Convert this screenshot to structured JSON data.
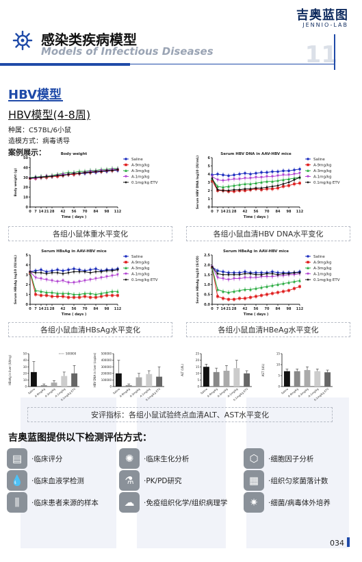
{
  "brand": {
    "cn": "吉奥蓝图",
    "en": "JENNIO-LAB"
  },
  "header": {
    "title_cn": "感染类疾病模型",
    "title_en": "Models of Infectious Diseases",
    "page_section_number": "11"
  },
  "section": {
    "title": "HBV模型",
    "subtitle": "HBV模型(4-8周)",
    "strain": "种属：C57BL/6小鼠",
    "method": "造模方式：病毒诱导",
    "examples_label": "案例展示："
  },
  "legend_labels": [
    "Saline",
    "A-9mg/kg",
    "A-3mg/kg",
    "A-1mg/kg",
    "0.1mg/kg ETV"
  ],
  "colors": {
    "saline": "#1f2fbf",
    "a9": "#e02020",
    "a3": "#22a83a",
    "a1": "#b040d0",
    "etv": "#111111",
    "accent": "#1f4aa8"
  },
  "chart_data": [
    {
      "type": "line",
      "title": "Body weight",
      "xlabel": "Time ( days )",
      "ylabel": "Body weight (g)",
      "x": [
        0,
        7,
        14,
        21,
        28,
        35,
        42,
        49,
        56,
        63,
        70,
        77,
        84,
        91,
        98,
        105,
        112
      ],
      "xticks": [
        "0",
        "7",
        "14",
        "21",
        "28",
        "42",
        "56",
        "70",
        "84",
        "98",
        "112"
      ],
      "ylim": [
        0,
        50
      ],
      "yticks": [
        "0",
        "10",
        "20",
        "30",
        "40",
        "50"
      ],
      "series": [
        {
          "name": "Saline",
          "values": [
            29,
            30,
            30,
            30,
            31,
            32,
            32,
            33,
            33,
            34,
            34,
            35,
            35,
            36,
            36,
            37,
            37
          ]
        },
        {
          "name": "A-9mg/kg",
          "values": [
            29,
            29,
            30,
            30,
            31,
            31,
            32,
            33,
            33,
            34,
            35,
            35,
            36,
            36,
            37,
            37,
            38
          ]
        },
        {
          "name": "A-3mg/kg",
          "values": [
            30,
            30,
            31,
            31,
            32,
            33,
            34,
            35,
            35,
            36,
            36,
            37,
            37,
            38,
            38,
            39,
            39
          ]
        },
        {
          "name": "A-1mg/kg",
          "values": [
            29,
            29,
            30,
            31,
            31,
            32,
            33,
            33,
            34,
            34,
            35,
            36,
            36,
            37,
            37,
            38,
            38
          ]
        },
        {
          "name": "0.1mg/kg ETV",
          "values": [
            29,
            30,
            30,
            31,
            31,
            32,
            32,
            33,
            34,
            34,
            35,
            35,
            36,
            36,
            37,
            37,
            38
          ]
        }
      ]
    },
    {
      "type": "line",
      "title": "Serum HBV DNA in AAV-HBV mice",
      "xlabel": "Time ( days )",
      "ylabel": "Serum HBV DNA log10 (IU/mL)",
      "x": [
        0,
        7,
        14,
        21,
        28,
        35,
        42,
        49,
        56,
        63,
        70,
        77,
        84,
        91,
        98,
        105,
        112
      ],
      "xticks": [
        "0",
        "7",
        "14",
        "21",
        "28",
        "42",
        "56",
        "70",
        "84",
        "98",
        "112"
      ],
      "ylim": [
        0,
        6
      ],
      "yticks": [
        "0",
        "1",
        "2",
        "3",
        "4",
        "5",
        "6"
      ],
      "series": [
        {
          "name": "Saline",
          "values": [
            3.9,
            4.0,
            3.9,
            3.8,
            3.9,
            4.0,
            4.1,
            4.0,
            4.1,
            4.2,
            4.2,
            4.3,
            4.3,
            4.4,
            4.4,
            4.5,
            4.6
          ]
        },
        {
          "name": "A-9mg/kg",
          "values": [
            3.2,
            2.0,
            2.0,
            1.9,
            1.9,
            2.0,
            2.0,
            2.1,
            2.2,
            2.1,
            2.2,
            2.2,
            2.3,
            2.5,
            2.6,
            2.8,
            2.9
          ]
        },
        {
          "name": "A-3mg/kg",
          "values": [
            3.4,
            2.5,
            2.4,
            2.5,
            2.6,
            2.7,
            2.8,
            2.8,
            2.9,
            3.0,
            3.1,
            3.1,
            3.2,
            3.3,
            3.4,
            3.5,
            3.6
          ]
        },
        {
          "name": "A-1mg/kg",
          "values": [
            3.7,
            3.3,
            3.2,
            3.3,
            3.4,
            3.4,
            3.5,
            3.5,
            3.6,
            3.6,
            3.7,
            3.7,
            3.8,
            3.9,
            3.9,
            4.0,
            4.1
          ]
        },
        {
          "name": "0.1mg/kg ETV",
          "values": [
            3.5,
            2.1,
            2.0,
            2.0,
            2.1,
            2.1,
            2.2,
            2.2,
            2.3,
            2.3,
            2.4,
            2.5,
            2.6,
            2.8,
            3.0,
            3.3,
            3.6
          ]
        }
      ]
    },
    {
      "type": "line",
      "title": "Serum HBsAg in AAV-HBV mice",
      "xlabel": "Time ( days )",
      "ylabel": "Serum HBsAg log10 (IU/mL)",
      "x": [
        0,
        7,
        14,
        21,
        28,
        35,
        42,
        49,
        56,
        63,
        70,
        77,
        84,
        91,
        98,
        105,
        112
      ],
      "xticks": [
        "0",
        "7",
        "14",
        "21",
        "28",
        "42",
        "56",
        "70",
        "84",
        "98",
        "112"
      ],
      "ylim": [
        0,
        5
      ],
      "yticks": [
        "0",
        "1",
        "2",
        "3",
        "4",
        "5"
      ],
      "series": [
        {
          "name": "Saline",
          "values": [
            3.3,
            3.4,
            3.5,
            3.3,
            3.4,
            3.5,
            3.4,
            3.5,
            3.6,
            3.5,
            3.4,
            3.5,
            3.6,
            3.4,
            3.5,
            3.5,
            3.6
          ]
        },
        {
          "name": "A-9mg/kg",
          "values": [
            3.2,
            1.0,
            0.9,
            0.9,
            0.8,
            0.8,
            0.8,
            0.7,
            0.7,
            0.7,
            0.8,
            0.7,
            0.7,
            0.8,
            0.9,
            0.9,
            0.9
          ]
        },
        {
          "name": "A-3mg/kg",
          "values": [
            3.3,
            1.4,
            1.3,
            1.2,
            1.2,
            1.1,
            1.1,
            1.1,
            1.0,
            1.0,
            1.1,
            1.1,
            1.0,
            1.1,
            1.2,
            1.3,
            1.3
          ]
        },
        {
          "name": "A-1mg/kg",
          "values": [
            3.3,
            2.7,
            2.6,
            2.5,
            2.4,
            2.3,
            2.4,
            2.2,
            2.2,
            2.3,
            2.4,
            2.5,
            2.6,
            2.7,
            2.8,
            2.9,
            3.0
          ]
        },
        {
          "name": "0.1mg/kg ETV",
          "values": [
            3.3,
            3.2,
            3.2,
            3.1,
            3.2,
            3.2,
            3.1,
            3.2,
            3.3,
            3.3,
            3.3,
            3.2,
            3.3,
            3.3,
            3.4,
            3.4,
            3.5
          ]
        }
      ]
    },
    {
      "type": "line",
      "title": "Serum HBeAg in AAV-HBV mice",
      "xlabel": "Time ( days )",
      "ylabel": "Serum HBeAg log10 (S/CO)",
      "x": [
        0,
        7,
        14,
        21,
        28,
        35,
        42,
        49,
        56,
        63,
        70,
        77,
        84,
        91,
        98,
        105,
        112
      ],
      "xticks": [
        "0",
        "7",
        "14",
        "21",
        "28",
        "42",
        "56",
        "70",
        "84",
        "98",
        "112"
      ],
      "ylim": [
        0,
        2.5
      ],
      "yticks": [
        "0.0",
        "0.5",
        "1.0",
        "1.5",
        "2.0",
        "2.5"
      ],
      "series": [
        {
          "name": "Saline",
          "values": [
            1.9,
            1.7,
            1.65,
            1.6,
            1.6,
            1.6,
            1.65,
            1.6,
            1.6,
            1.6,
            1.6,
            1.65,
            1.6,
            1.6,
            1.6,
            1.6,
            1.65
          ]
        },
        {
          "name": "A-9mg/kg",
          "values": [
            1.85,
            0.4,
            0.3,
            0.25,
            0.25,
            0.3,
            0.3,
            0.35,
            0.4,
            0.45,
            0.5,
            0.55,
            0.6,
            0.65,
            0.7,
            0.8,
            0.9
          ]
        },
        {
          "name": "A-3mg/kg",
          "values": [
            1.85,
            0.75,
            0.65,
            0.6,
            0.65,
            0.7,
            0.75,
            0.75,
            0.8,
            0.85,
            0.9,
            0.95,
            1.0,
            1.05,
            1.1,
            1.15,
            1.2
          ]
        },
        {
          "name": "A-1mg/kg",
          "values": [
            1.9,
            1.35,
            1.3,
            1.25,
            1.3,
            1.3,
            1.35,
            1.35,
            1.35,
            1.4,
            1.4,
            1.4,
            1.45,
            1.45,
            1.5,
            1.5,
            1.55
          ]
        },
        {
          "name": "0.1mg/kg ETV",
          "values": [
            1.9,
            1.55,
            1.5,
            1.5,
            1.5,
            1.5,
            1.55,
            1.55,
            1.5,
            1.5,
            1.55,
            1.55,
            1.5,
            1.55,
            1.55,
            1.6,
            1.6
          ]
        }
      ]
    },
    {
      "type": "bar",
      "title": "",
      "ylabel": "HBsAg in liver (IU/mg)",
      "ylim": [
        0,
        50
      ],
      "yticks": [
        "0",
        "10",
        "20",
        "30",
        "40",
        "50"
      ],
      "categories": [
        "Saline",
        "A-9mg/kg",
        "A-3mg/kg",
        "A-1mg/kg",
        "0.1mg/kg ETV"
      ],
      "values": [
        22,
        2,
        6,
        16,
        20
      ],
      "errors": [
        16,
        2,
        3,
        6,
        12
      ],
      "annotation": "500000"
    },
    {
      "type": "bar",
      "title": "",
      "ylabel": "HBV DNA in liver (copies)",
      "ylim": [
        0,
        500000
      ],
      "yticks": [
        "0",
        "100000",
        "200000",
        "300000",
        "400000",
        "500000"
      ],
      "categories": [
        "Saline",
        "A-9mg/kg",
        "A-3mg/kg",
        "A-1mg/kg",
        "0.1mg/kg ETV"
      ],
      "values": [
        200000,
        20000,
        140000,
        190000,
        150000
      ],
      "errors": [
        200000,
        20000,
        60000,
        50000,
        150000
      ]
    },
    {
      "type": "bar",
      "title": "",
      "ylabel": "ALT (U/L)",
      "ylim": [
        0,
        25
      ],
      "yticks": [
        "0",
        "5",
        "10",
        "15",
        "20",
        "25"
      ],
      "categories": [
        "Saline",
        "A-9mg/kg",
        "A-3mg/kg",
        "A-1mg/kg",
        "0.1mg/kg ETV"
      ],
      "values": [
        15,
        11,
        12,
        14,
        10
      ],
      "errors": [
        2,
        3,
        4,
        6,
        2
      ]
    },
    {
      "type": "bar",
      "title": "",
      "ylabel": "AST (U/L)",
      "ylim": [
        0,
        15
      ],
      "yticks": [
        "0",
        "5",
        "10",
        "15"
      ],
      "categories": [
        "Saline",
        "A-9mg/kg",
        "A-3mg/kg",
        "A-1mg/kg",
        "0.1mg/kg ETV"
      ],
      "values": [
        7,
        7,
        7.5,
        7,
        6.5
      ],
      "errors": [
        1,
        1,
        1.5,
        1,
        1
      ]
    }
  ],
  "captions": {
    "c1": "各组小鼠体重水平变化",
    "c2": "各组小鼠血清HBV DNA水平变化",
    "c3": "各组小鼠血清HBsAg水平变化",
    "c4": "各组小鼠血清HBeAg水平变化",
    "c5": "安评指标：各组小鼠试验终点血清ALT、AST水平变化"
  },
  "services_title": "吉奥蓝图提供以下检测评估方式：",
  "services": [
    {
      "label": "·临床评分",
      "icon": "clipboard-icon"
    },
    {
      "label": "·临床生化分析",
      "icon": "molecule-icon"
    },
    {
      "label": "·细胞因子分析",
      "icon": "network-icon"
    },
    {
      "label": "·临床血液学检测",
      "icon": "blood-drop-icon"
    },
    {
      "label": "·PK/PD研究",
      "icon": "flask-icon"
    },
    {
      "label": "·组织匀浆菌落计数",
      "icon": "petri-dish-icon"
    },
    {
      "label": "·临床患者来源的样本",
      "icon": "test-tubes-icon"
    },
    {
      "label": "·免疫组织化学/组织病理学",
      "icon": "tissue-icon"
    },
    {
      "label": "·细菌/病毒体外培养",
      "icon": "virus-icon"
    }
  ],
  "page_number": "034"
}
